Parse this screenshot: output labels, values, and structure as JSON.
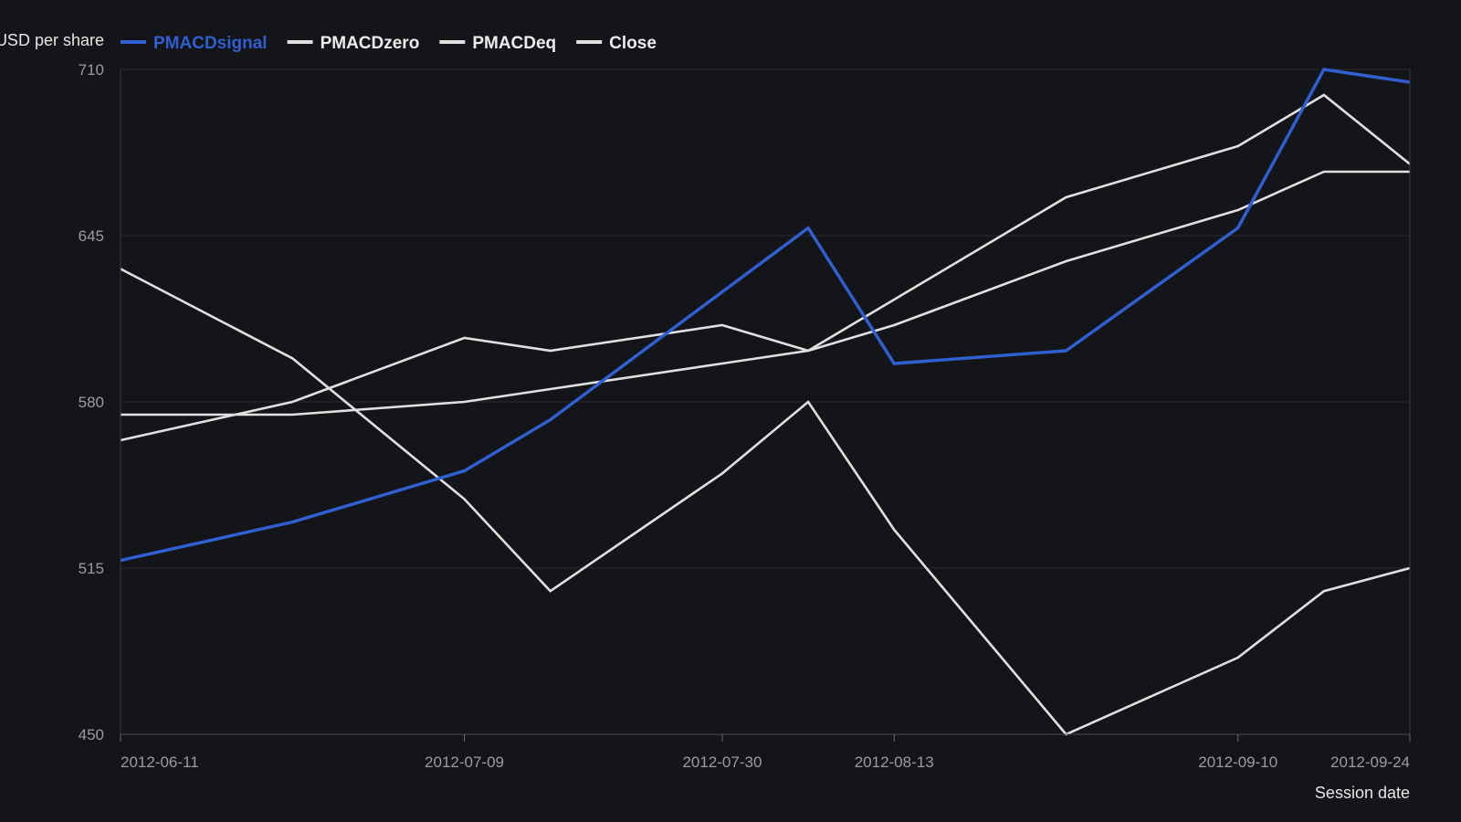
{
  "chart_data": {
    "type": "line",
    "ylabel": "USD per share",
    "xlabel": "Session date",
    "x": [
      "2012-06-11",
      "2012-06-25",
      "2012-07-09",
      "2012-07-16",
      "2012-07-30",
      "2012-08-06",
      "2012-08-13",
      "2012-08-27",
      "2012-09-10",
      "2012-09-17",
      "2012-09-24"
    ],
    "x_ticks": [
      "2012-06-11",
      "2012-07-09",
      "2012-07-30",
      "2012-08-13",
      "2012-09-10",
      "2012-09-24"
    ],
    "ylim": [
      450,
      710
    ],
    "y_ticks": [
      450,
      515,
      580,
      645,
      710
    ],
    "grid": true,
    "legend_position": "top-left",
    "series": [
      {
        "name": "PMACDsignal",
        "color": "#2f5fd0",
        "values": [
          518,
          533,
          553,
          573,
          623,
          648,
          595,
          600,
          648,
          710,
          705
        ]
      },
      {
        "name": "PMACDzero",
        "color": "#e0e0e0",
        "values": [
          632,
          597,
          542,
          506,
          552,
          580,
          530,
          450,
          480,
          506,
          515
        ]
      },
      {
        "name": "PMACDeq",
        "color": "#e0e0e0",
        "values": [
          565,
          580,
          605,
          600,
          610,
          600,
          620,
          660,
          680,
          700,
          673
        ]
      },
      {
        "name": "Close",
        "color": "#e0e0e0",
        "values": [
          575,
          575,
          580,
          585,
          595,
          600,
          610,
          635,
          655,
          670,
          670
        ]
      }
    ]
  }
}
